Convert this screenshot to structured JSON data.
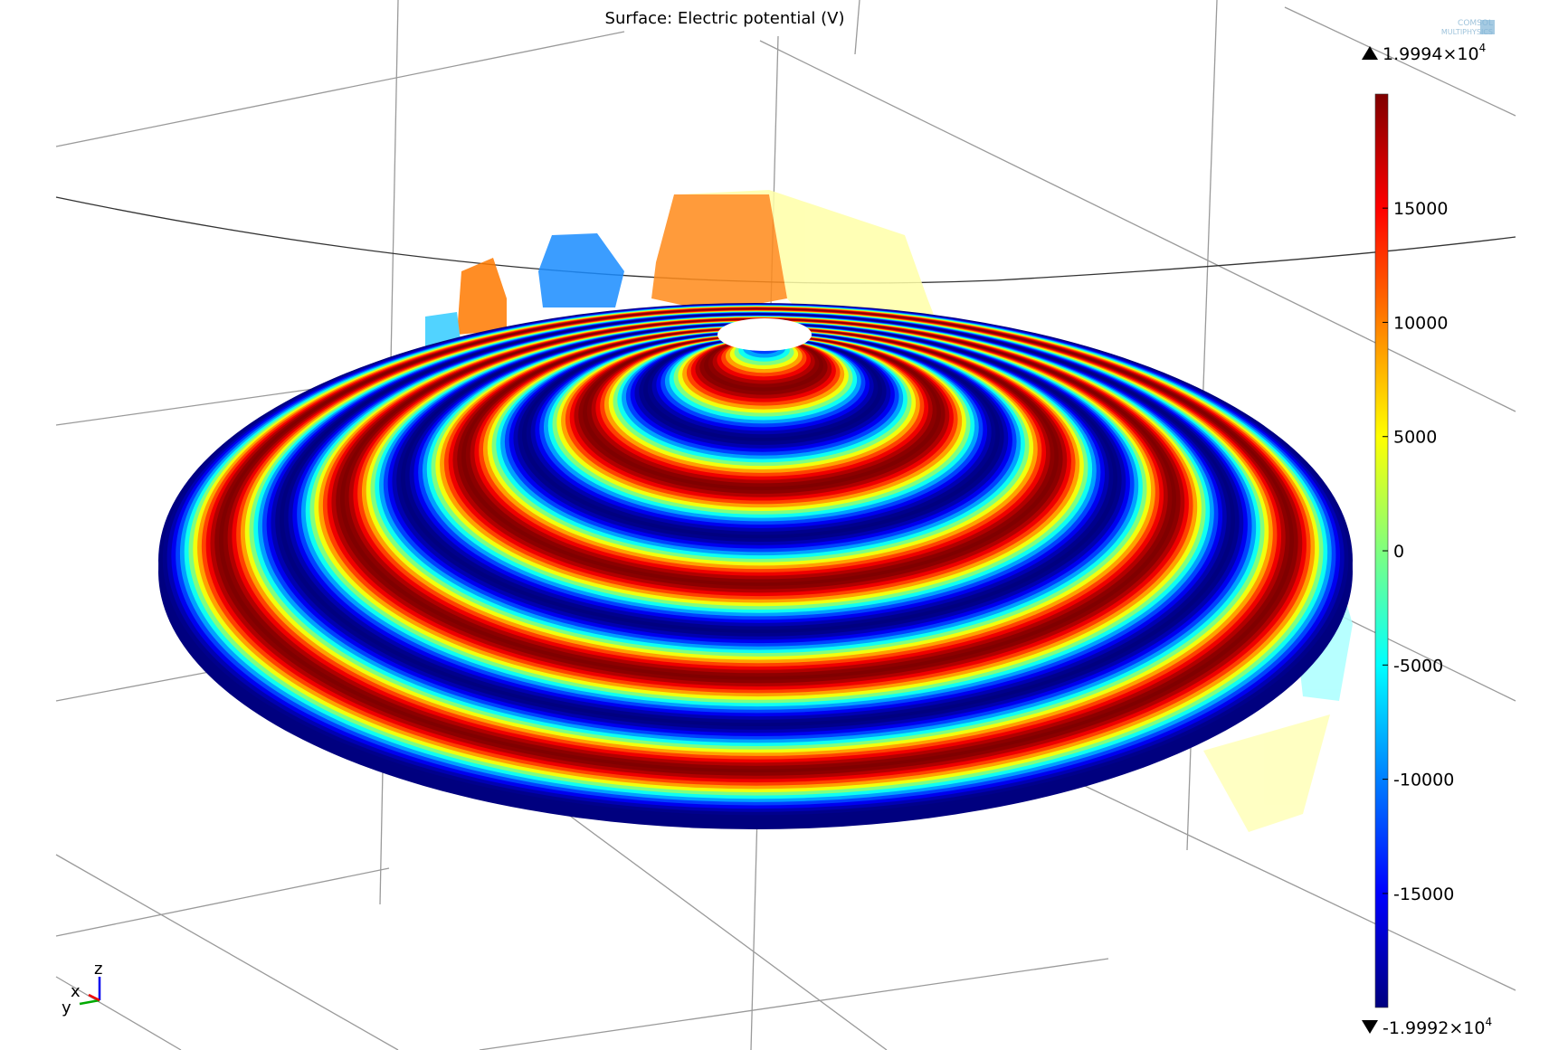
{
  "title": "Surface: Electric potential (V)",
  "logo": {
    "line1": "COMSOL",
    "line2": "MULTIPHYSICS"
  },
  "colorbar": {
    "max": 19994,
    "min": -19992,
    "max_label": "1.9994×10",
    "max_exponent": "4",
    "min_label": "-1.9992×10",
    "min_exponent": "4",
    "ticks": [
      15000,
      10000,
      5000,
      0,
      -5000,
      -10000,
      -15000
    ]
  },
  "axes_triad": {
    "x": "x",
    "y": "y",
    "z": "z"
  }
}
